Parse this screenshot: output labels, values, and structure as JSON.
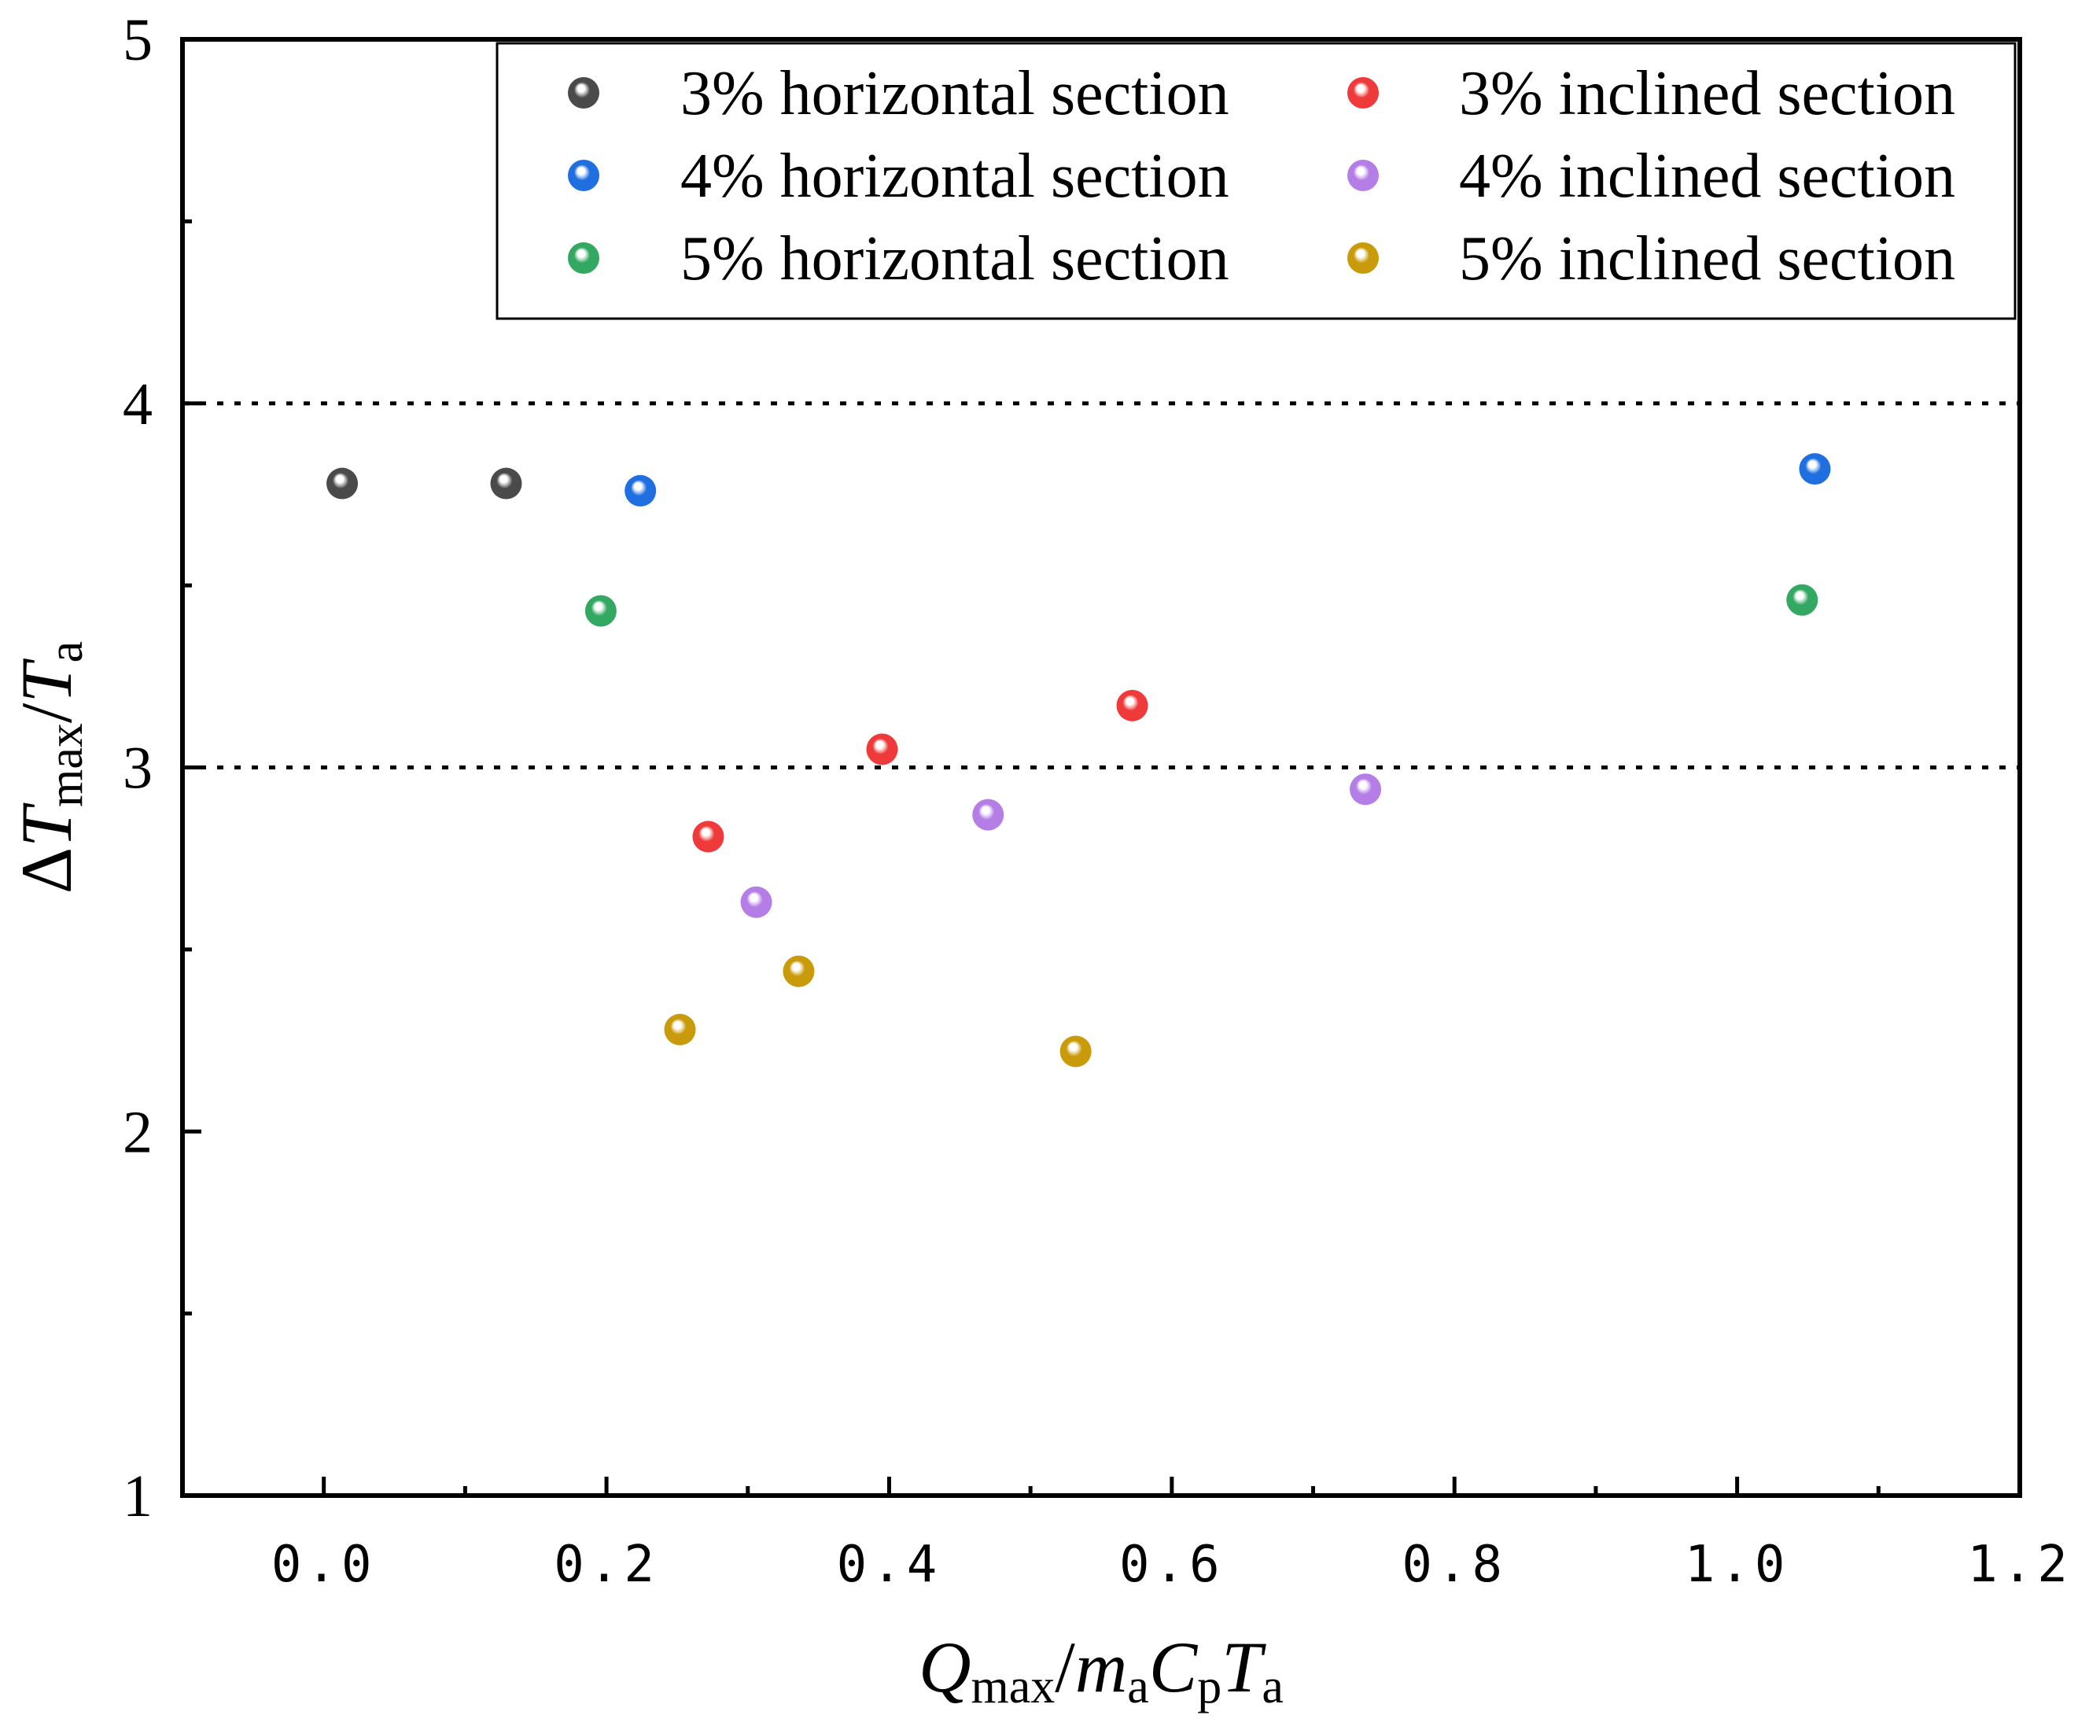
{
  "chart_data": {
    "type": "scatter",
    "title": "",
    "xlabel": {
      "parts": [
        {
          "text": "Q",
          "style": "italic"
        },
        {
          "text": "max",
          "style": "sub"
        },
        {
          "text": "/",
          "style": "normal"
        },
        {
          "text": "m",
          "style": "italic"
        },
        {
          "text": "a",
          "style": "sub"
        },
        {
          "text": "C",
          "style": "italic"
        },
        {
          "text": "p",
          "style": "sub"
        },
        {
          "text": "T",
          "style": "italic"
        },
        {
          "text": "a",
          "style": "sub"
        }
      ]
    },
    "ylabel": {
      "parts": [
        {
          "text": "Δ",
          "style": "normal"
        },
        {
          "text": "T",
          "style": "italic"
        },
        {
          "text": "max",
          "style": "sub"
        },
        {
          "text": "/",
          "style": "normal"
        },
        {
          "text": "T",
          "style": "italic"
        },
        {
          "text": "a",
          "style": "sub"
        }
      ]
    },
    "xlim": [
      -0.1,
      1.2
    ],
    "ylim": [
      1,
      5
    ],
    "xticks": [
      0.0,
      0.2,
      0.4,
      0.6,
      0.8,
      1.0,
      1.2
    ],
    "xtick_labels": [
      "0.0",
      "0.2",
      "0.4",
      "0.6",
      "0.8",
      "1.0",
      "1.2"
    ],
    "yticks": [
      1,
      2,
      3,
      4,
      5
    ],
    "ytick_labels": [
      "1",
      "2",
      "3",
      "4",
      "5"
    ],
    "reference_lines": [
      {
        "y": 4,
        "style": "dotted"
      },
      {
        "y": 3,
        "style": "dotted"
      }
    ],
    "legend_position": "top-right",
    "legend_columns": 2,
    "grid": false,
    "series": [
      {
        "name": "3% horizontal section",
        "color": "#4a4a4a",
        "points": [
          {
            "x": 0.013,
            "y": 3.78
          },
          {
            "x": 0.129,
            "y": 3.78
          }
        ]
      },
      {
        "name": "4% horizontal section",
        "color": "#1f6fe0",
        "points": [
          {
            "x": 0.224,
            "y": 3.76
          },
          {
            "x": 1.055,
            "y": 3.82
          }
        ]
      },
      {
        "name": "5% horizontal section",
        "color": "#33a862",
        "points": [
          {
            "x": 0.196,
            "y": 3.43
          },
          {
            "x": 1.046,
            "y": 3.46
          }
        ]
      },
      {
        "name": "3% inclined section",
        "color": "#ee3a3a",
        "points": [
          {
            "x": 0.272,
            "y": 2.81
          },
          {
            "x": 0.395,
            "y": 3.05
          },
          {
            "x": 0.572,
            "y": 3.17
          }
        ]
      },
      {
        "name": "4% inclined section",
        "color": "#b57ee6",
        "points": [
          {
            "x": 0.306,
            "y": 2.63
          },
          {
            "x": 0.47,
            "y": 2.87
          },
          {
            "x": 0.737,
            "y": 2.94
          }
        ]
      },
      {
        "name": "5% inclined section",
        "color": "#c99a0a",
        "points": [
          {
            "x": 0.252,
            "y": 2.28
          },
          {
            "x": 0.336,
            "y": 2.44
          },
          {
            "x": 0.532,
            "y": 2.22
          }
        ]
      }
    ]
  }
}
